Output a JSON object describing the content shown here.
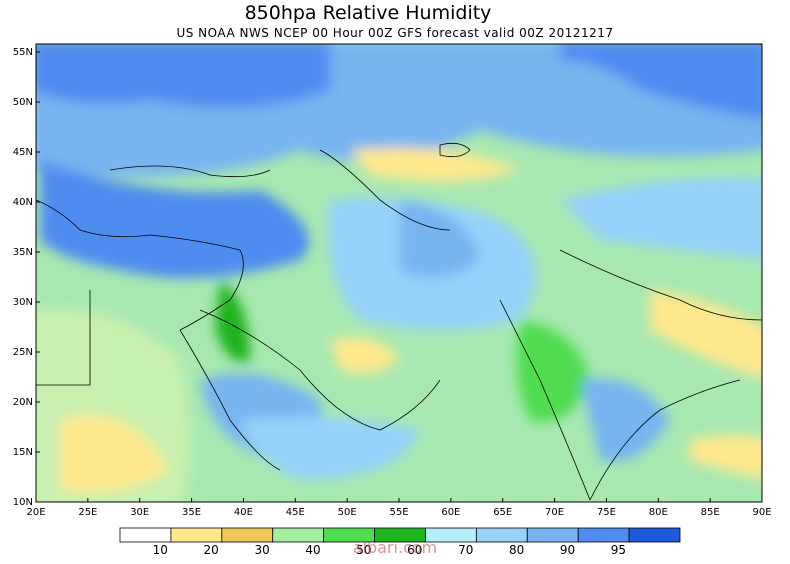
{
  "map": {
    "title": "850hpa Relative Humidity",
    "subtitle": "US NOAA NWS NCEP 00 Hour 00Z GFS forecast valid 00Z 20121217",
    "xlim": [
      20,
      90
    ],
    "ylim": [
      10,
      55.8
    ],
    "xticks": [
      {
        "value": 20,
        "label": "20E"
      },
      {
        "value": 25,
        "label": "25E"
      },
      {
        "value": 30,
        "label": "30E"
      },
      {
        "value": 35,
        "label": "35E"
      },
      {
        "value": 40,
        "label": "40E"
      },
      {
        "value": 45,
        "label": "45E"
      },
      {
        "value": 50,
        "label": "50E"
      },
      {
        "value": 55,
        "label": "55E"
      },
      {
        "value": 60,
        "label": "60E"
      },
      {
        "value": 65,
        "label": "65E"
      },
      {
        "value": 70,
        "label": "70E"
      },
      {
        "value": 75,
        "label": "75E"
      },
      {
        "value": 80,
        "label": "80E"
      },
      {
        "value": 85,
        "label": "85E"
      },
      {
        "value": 90,
        "label": "90E"
      }
    ],
    "yticks": [
      {
        "value": 10,
        "label": "10N"
      },
      {
        "value": 15,
        "label": "15N"
      },
      {
        "value": 20,
        "label": "20N"
      },
      {
        "value": 25,
        "label": "25N"
      },
      {
        "value": 30,
        "label": "30N"
      },
      {
        "value": 35,
        "label": "35N"
      },
      {
        "value": 40,
        "label": "40N"
      },
      {
        "value": 45,
        "label": "45N"
      },
      {
        "value": 50,
        "label": "50N"
      },
      {
        "value": 55,
        "label": "55N"
      }
    ],
    "colorbar": {
      "levels": [
        10,
        20,
        30,
        40,
        50,
        60,
        70,
        80,
        90,
        95
      ],
      "colors": [
        "#ffffff",
        "#ffe88c",
        "#f0c858",
        "#a0f0a0",
        "#50dc50",
        "#1eb41e",
        "#b4f0fa",
        "#96d2fa",
        "#78b4f0",
        "#508cf0",
        "#1e5adc"
      ]
    },
    "watermark": "albari.com"
  }
}
